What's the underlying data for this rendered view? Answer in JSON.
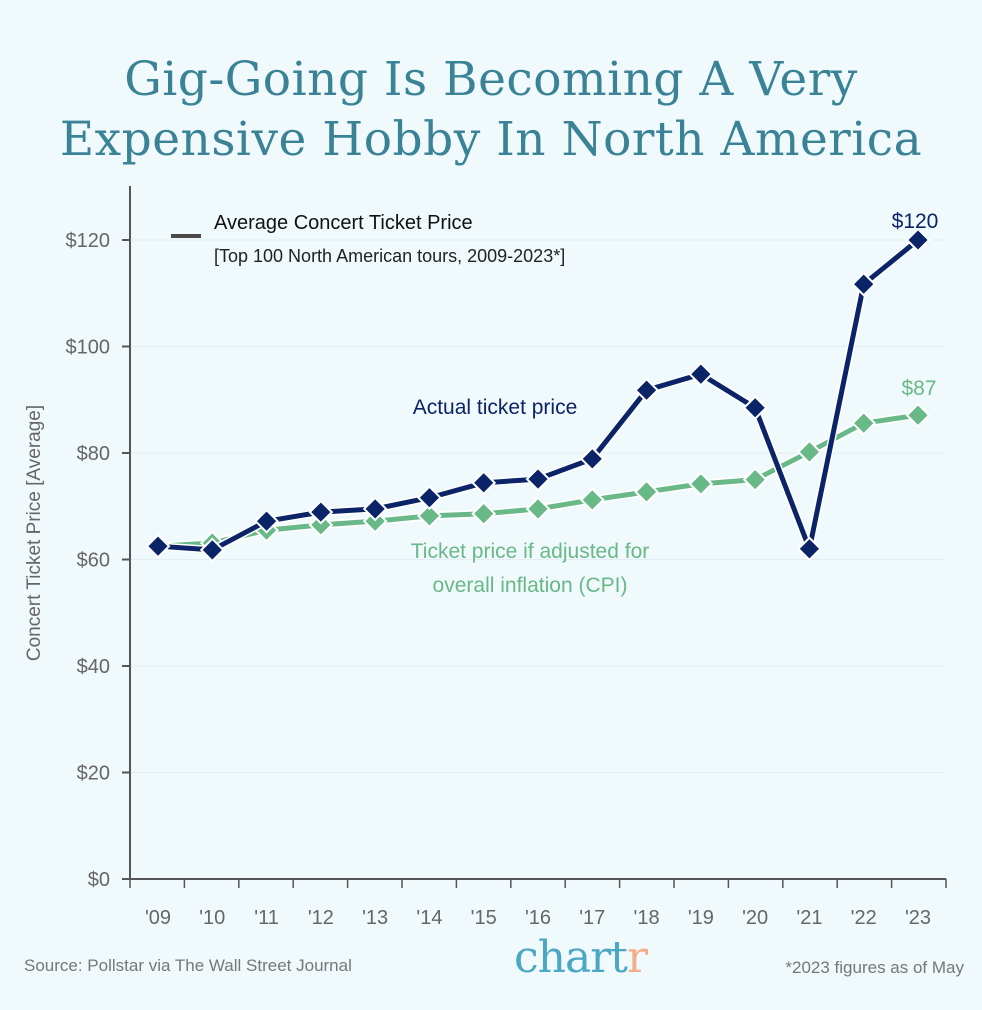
{
  "title": {
    "line1": "Gig-Going Is Becoming A Very",
    "line2": "Expensive Hobby In North America"
  },
  "colors": {
    "background": "#f0f9fb",
    "title": "#3a8396",
    "actual": "#0b2468",
    "cpi": "#68b888",
    "axis": "#555555",
    "tick_label": "#666666",
    "logo_main": "#4aa8c4",
    "logo_accent": "#f4ad88"
  },
  "chart_data": {
    "type": "line",
    "title": "Gig-Going Is Becoming A Very Expensive Hobby In North America",
    "legend": {
      "title": "Average Concert Ticket Price",
      "subtitle": "[Top 100 North American tours, 2009-2023*]",
      "placement": "top-left"
    },
    "xlabel": "",
    "ylabel": "Concert Ticket Price [Average]",
    "x": [
      "'09",
      "'10",
      "'11",
      "'12",
      "'13",
      "'14",
      "'15",
      "'16",
      "'17",
      "'18",
      "'19",
      "'20",
      "'21",
      "'22",
      "'23"
    ],
    "ylim": [
      0,
      130
    ],
    "yticks": [
      0,
      20,
      40,
      60,
      80,
      100,
      120
    ],
    "ytick_labels": [
      "$0",
      "$20",
      "$40",
      "$60",
      "$80",
      "$100",
      "$120"
    ],
    "grid": true,
    "series": [
      {
        "name": "Actual ticket price",
        "values": [
          62.5,
          61.8,
          67.2,
          68.9,
          69.5,
          71.6,
          74.4,
          75.1,
          78.9,
          91.8,
          94.8,
          88.5,
          62.0,
          111.7,
          120.0
        ],
        "end_label": "$120"
      },
      {
        "name": "Ticket price if adjusted for overall inflation (CPI)",
        "label_line1": "Ticket price if adjusted for",
        "label_line2": "overall inflation (CPI)",
        "values": [
          62.5,
          63.1,
          65.5,
          66.5,
          67.2,
          68.2,
          68.6,
          69.5,
          71.2,
          72.7,
          74.2,
          75.0,
          80.2,
          85.6,
          87.1
        ],
        "end_label": "$87"
      }
    ]
  },
  "footer": {
    "source": "Source: Pollstar via The Wall Street Journal",
    "logo_main": "chart",
    "logo_accent": "r",
    "note": "*2023 figures as of May"
  }
}
